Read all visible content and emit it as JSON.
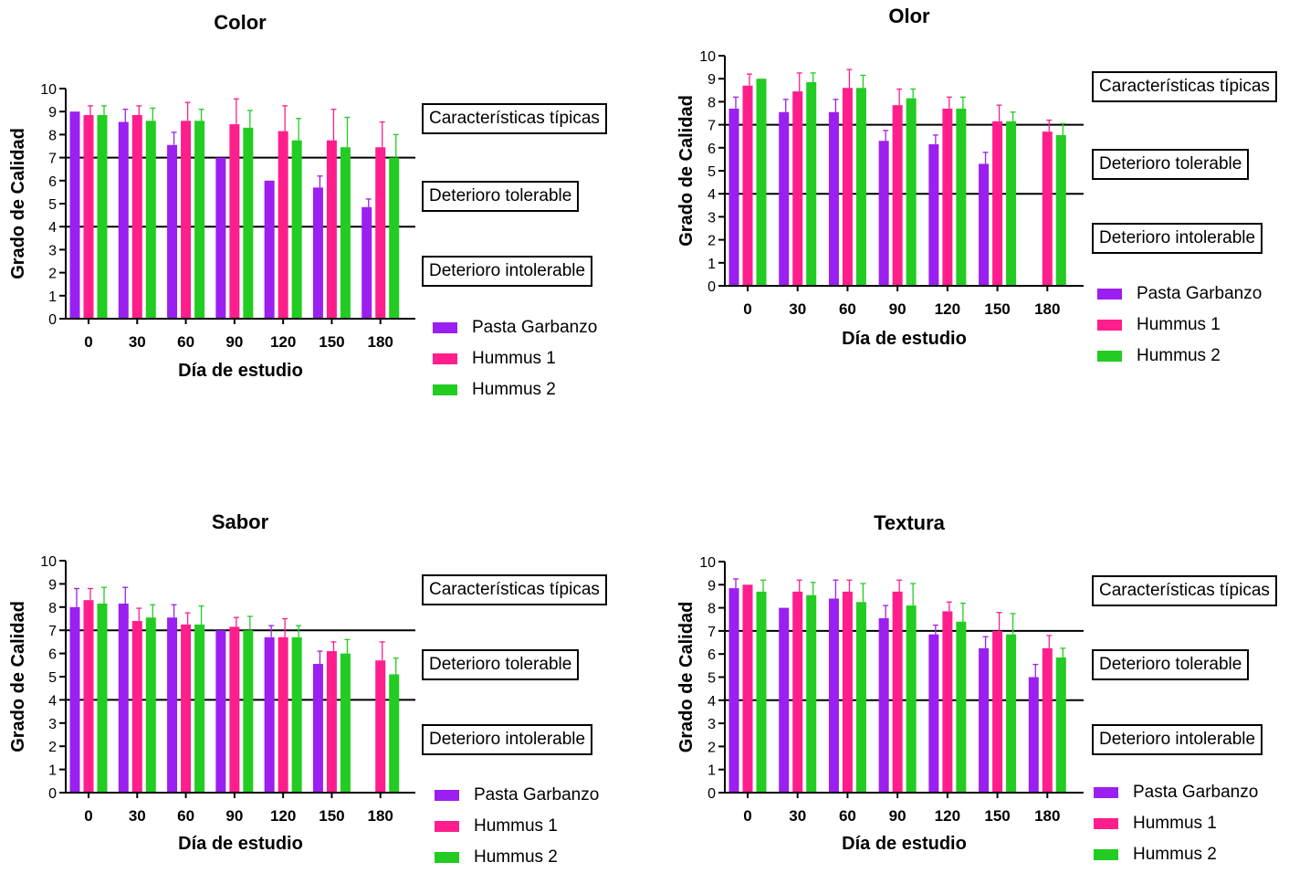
{
  "chart_data": [
    {
      "type": "bar",
      "title": "Color",
      "xlabel": "Día de estudio",
      "ylabel": "Grado de Calidad",
      "ylim": [
        0,
        10
      ],
      "yticks": [
        0,
        1,
        2,
        3,
        4,
        5,
        6,
        7,
        8,
        9,
        10
      ],
      "categories": [
        "0",
        "30",
        "60",
        "90",
        "120",
        "150",
        "180"
      ],
      "reference_lines": [
        7,
        4
      ],
      "zones": [
        "Características típicas",
        "Deterioro tolerable",
        "Deterioro intolerable"
      ],
      "legend": [
        "Pasta Garbanzo",
        "Hummus 1",
        "Hummus 2"
      ],
      "series": [
        {
          "name": "Pasta Garbanzo",
          "color": "#9b1ff0",
          "values": [
            9.0,
            8.55,
            7.55,
            7.0,
            6.0,
            5.7,
            4.85
          ],
          "errors": [
            0,
            0.55,
            0.55,
            0,
            0,
            0.5,
            0.35
          ]
        },
        {
          "name": "Hummus 1",
          "color": "#ff1e8c",
          "values": [
            8.85,
            8.85,
            8.6,
            8.45,
            8.15,
            7.75,
            7.45
          ],
          "errors": [
            0.4,
            0.4,
            0.8,
            1.1,
            1.1,
            1.35,
            1.1
          ]
        },
        {
          "name": "Hummus 2",
          "color": "#22cc22",
          "values": [
            8.85,
            8.6,
            8.6,
            8.3,
            7.75,
            7.45,
            7.0
          ],
          "errors": [
            0.4,
            0.55,
            0.5,
            0.75,
            0.95,
            1.3,
            1.0
          ]
        }
      ]
    },
    {
      "type": "bar",
      "title": "Olor",
      "xlabel": "Día de estudio",
      "ylabel": "Grado de Calidad",
      "ylim": [
        0,
        10
      ],
      "yticks": [
        0,
        1,
        2,
        3,
        4,
        5,
        6,
        7,
        8,
        9,
        10
      ],
      "categories": [
        "0",
        "30",
        "60",
        "90",
        "120",
        "150",
        "180"
      ],
      "reference_lines": [
        7,
        4
      ],
      "zones": [
        "Características típicas",
        "Deterioro tolerable",
        "Deterioro intolerable"
      ],
      "legend": [
        "Pasta Garbanzo",
        "Hummus 1",
        "Hummus 2"
      ],
      "series": [
        {
          "name": "Pasta Garbanzo",
          "color": "#9b1ff0",
          "values": [
            7.7,
            7.55,
            7.55,
            6.3,
            6.15,
            5.3,
            0
          ],
          "errors": [
            0.5,
            0.55,
            0.55,
            0.45,
            0.4,
            0.5,
            0
          ]
        },
        {
          "name": "Hummus 1",
          "color": "#ff1e8c",
          "values": [
            8.7,
            8.45,
            8.6,
            7.85,
            7.7,
            7.15,
            6.7
          ],
          "errors": [
            0.5,
            0.8,
            0.8,
            0.7,
            0.5,
            0.7,
            0.5
          ]
        },
        {
          "name": "Hummus 2",
          "color": "#22cc22",
          "values": [
            9.0,
            8.85,
            8.6,
            8.15,
            7.7,
            7.15,
            6.55
          ],
          "errors": [
            0,
            0.4,
            0.55,
            0.4,
            0.5,
            0.4,
            0.5
          ]
        }
      ]
    },
    {
      "type": "bar",
      "title": "Sabor",
      "xlabel": "Día de estudio",
      "ylabel": "Grado de Calidad",
      "ylim": [
        0,
        10
      ],
      "yticks": [
        0,
        1,
        2,
        3,
        4,
        5,
        6,
        7,
        8,
        9,
        10
      ],
      "categories": [
        "0",
        "30",
        "60",
        "90",
        "120",
        "150",
        "180"
      ],
      "reference_lines": [
        7,
        4
      ],
      "zones": [
        "Características típicas",
        "Deterioro tolerable",
        "Deterioro intolerable"
      ],
      "legend": [
        "Pasta Garbanzo",
        "Hummus 1",
        "Hummus 2"
      ],
      "series": [
        {
          "name": "Pasta Garbanzo",
          "color": "#9b1ff0",
          "values": [
            8.0,
            8.15,
            7.55,
            7.0,
            6.7,
            5.55,
            0
          ],
          "errors": [
            0.8,
            0.7,
            0.55,
            0,
            0.5,
            0.55,
            0
          ]
        },
        {
          "name": "Hummus 1",
          "color": "#ff1e8c",
          "values": [
            8.3,
            7.4,
            7.25,
            7.15,
            6.7,
            6.1,
            5.7
          ],
          "errors": [
            0.5,
            0.55,
            0.5,
            0.4,
            0.8,
            0.4,
            0.8
          ]
        },
        {
          "name": "Hummus 2",
          "color": "#22cc22",
          "values": [
            8.15,
            7.55,
            7.25,
            7.0,
            6.7,
            6.0,
            5.1
          ],
          "errors": [
            0.7,
            0.55,
            0.8,
            0.6,
            0.5,
            0.6,
            0.7
          ]
        }
      ]
    },
    {
      "type": "bar",
      "title": "Textura",
      "xlabel": "Día de estudio",
      "ylabel": "Grado de Calidad",
      "ylim": [
        0,
        10
      ],
      "yticks": [
        0,
        1,
        2,
        3,
        4,
        5,
        6,
        7,
        8,
        9,
        10
      ],
      "categories": [
        "0",
        "30",
        "60",
        "90",
        "120",
        "150",
        "180"
      ],
      "reference_lines": [
        7,
        4
      ],
      "zones": [
        "Características típicas",
        "Deterioro tolerable",
        "Deterioro intolerable"
      ],
      "legend": [
        "Pasta Garbanzo",
        "Hummus 1",
        "Hummus 2"
      ],
      "series": [
        {
          "name": "Pasta Garbanzo",
          "color": "#9b1ff0",
          "values": [
            8.85,
            8.0,
            8.4,
            7.55,
            6.85,
            6.25,
            5.0
          ],
          "errors": [
            0.4,
            0,
            0.8,
            0.55,
            0.4,
            0.5,
            0.55
          ]
        },
        {
          "name": "Hummus 1",
          "color": "#ff1e8c",
          "values": [
            9.0,
            8.7,
            8.7,
            8.7,
            7.85,
            7.0,
            6.25
          ],
          "errors": [
            0,
            0.5,
            0.5,
            0.5,
            0.4,
            0.8,
            0.55
          ]
        },
        {
          "name": "Hummus 2",
          "color": "#22cc22",
          "values": [
            8.7,
            8.55,
            8.25,
            8.1,
            7.4,
            6.85,
            5.85
          ],
          "errors": [
            0.5,
            0.55,
            0.8,
            0.95,
            0.8,
            0.9,
            0.4
          ]
        }
      ]
    }
  ]
}
